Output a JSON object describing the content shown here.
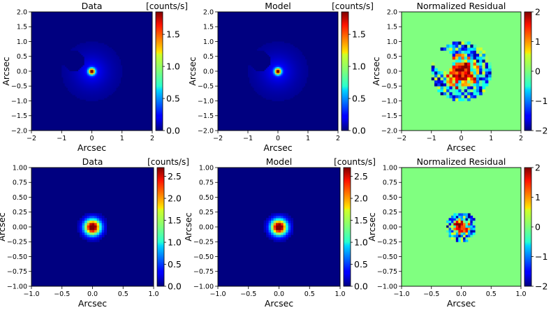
{
  "chart_data": [
    {
      "type": "heatmap",
      "title": "Data",
      "unit_label": "[counts/s]",
      "xlabel": "Arcsec",
      "ylabel": "Arcsec",
      "xlim": [
        -2,
        2
      ],
      "ylim": [
        -2,
        2
      ],
      "xticks": [
        "-2",
        "-1",
        "0",
        "1",
        "2"
      ],
      "yticks": [
        "-2.0",
        "-1.5",
        "-1.0",
        "-0.5",
        "0.0",
        "0.5",
        "1.0",
        "1.5",
        "2.0"
      ],
      "colormap": "jet",
      "clim": [
        0,
        1.85
      ],
      "cbar_ticks": [
        "0.0",
        "0.5",
        "1.0",
        "1.5"
      ],
      "cbar_values": [
        0,
        0.5,
        1.0,
        1.5
      ],
      "kind": "image",
      "peak": 1.85,
      "center": [
        0.0,
        0.0
      ],
      "sigma": 0.07,
      "mask": {
        "outer_r": 1.0,
        "notch_center": [
          -0.6,
          0.35
        ],
        "notch_r": 0.35
      },
      "pixel": 0.05
    },
    {
      "type": "heatmap",
      "title": "Model",
      "unit_label": "[counts/s]",
      "xlabel": "Arcsec",
      "ylabel": "Arcsec",
      "xlim": [
        -2,
        2
      ],
      "ylim": [
        -2,
        2
      ],
      "xticks": [
        "-2",
        "-1",
        "0",
        "1",
        "2"
      ],
      "yticks": [
        "-2.0",
        "-1.5",
        "-1.0",
        "-0.5",
        "0.0",
        "0.5",
        "1.0",
        "1.5",
        "2.0"
      ],
      "colormap": "jet",
      "clim": [
        0,
        1.85
      ],
      "cbar_ticks": [
        "0.0",
        "0.5",
        "1.0",
        "1.5"
      ],
      "cbar_values": [
        0,
        0.5,
        1.0,
        1.5
      ],
      "kind": "image",
      "peak": 1.85,
      "center": [
        0.0,
        0.0
      ],
      "sigma": 0.07,
      "mask": {
        "outer_r": 1.0,
        "notch_center": [
          -0.6,
          0.35
        ],
        "notch_r": 0.35
      },
      "pixel": 0.05
    },
    {
      "type": "heatmap",
      "title": "Normalized Residual",
      "unit_label": "",
      "xlabel": "Arcsec",
      "ylabel": "Arcsec",
      "xlim": [
        -2,
        2
      ],
      "ylim": [
        -2,
        2
      ],
      "xticks": [
        "-2",
        "-1",
        "0",
        "1",
        "2"
      ],
      "yticks": [
        "-2.0",
        "-1.5",
        "-1.0",
        "-0.5",
        "0.0",
        "0.5",
        "1.0",
        "1.5",
        "2.0"
      ],
      "colormap": "jet",
      "clim": [
        -2,
        2
      ],
      "cbar_ticks": [
        "-2",
        "-1",
        "0",
        "1",
        "2"
      ],
      "cbar_values": [
        -2,
        -1,
        0,
        1,
        2
      ],
      "kind": "residual",
      "background": 0,
      "mask": {
        "outer_r": 1.0,
        "notch_center": [
          -0.6,
          0.35
        ],
        "notch_r": 0.35
      },
      "pixel": 0.1
    },
    {
      "type": "heatmap",
      "title": "Data",
      "unit_label": "[counts/s]",
      "xlabel": "Arcsec",
      "ylabel": "Arcsec",
      "xlim": [
        -1,
        1
      ],
      "ylim": [
        -1,
        1
      ],
      "xticks": [
        "-1.0",
        "-0.5",
        "0.0",
        "0.5",
        "1.0"
      ],
      "yticks": [
        "-1.00",
        "-0.75",
        "-0.50",
        "-0.25",
        "0.00",
        "0.25",
        "0.50",
        "0.75",
        "1.00"
      ],
      "colormap": "jet",
      "clim": [
        0,
        2.7
      ],
      "cbar_ticks": [
        "0.0",
        "0.5",
        "1.0",
        "1.5",
        "2.0",
        "2.5"
      ],
      "cbar_values": [
        0,
        0.5,
        1.0,
        1.5,
        2.0,
        2.5
      ],
      "kind": "image",
      "peak": 2.7,
      "center": [
        0.0,
        0.0
      ],
      "sigma": 0.09,
      "mask": {
        "outer_r": 0.25
      },
      "pixel": 0.04
    },
    {
      "type": "heatmap",
      "title": "Model",
      "unit_label": "[counts/s]",
      "xlabel": "Arcsec",
      "ylabel": "Arcsec",
      "xlim": [
        -1,
        1
      ],
      "ylim": [
        -1,
        1
      ],
      "xticks": [
        "-1.0",
        "-0.5",
        "0.0",
        "0.5",
        "1.0"
      ],
      "yticks": [
        "-1.00",
        "-0.75",
        "-0.50",
        "-0.25",
        "0.00",
        "0.25",
        "0.50",
        "0.75",
        "1.00"
      ],
      "colormap": "jet",
      "clim": [
        0,
        2.7
      ],
      "cbar_ticks": [
        "0.0",
        "0.5",
        "1.0",
        "1.5",
        "2.0",
        "2.5"
      ],
      "cbar_values": [
        0,
        0.5,
        1.0,
        1.5,
        2.0,
        2.5
      ],
      "kind": "image",
      "peak": 2.7,
      "center": [
        0.0,
        0.0
      ],
      "sigma": 0.09,
      "mask": {
        "outer_r": 0.25
      },
      "pixel": 0.04
    },
    {
      "type": "heatmap",
      "title": "Normalized Residual",
      "unit_label": "",
      "xlabel": "Arcsec",
      "ylabel": "Arcsec",
      "xlim": [
        -1,
        1
      ],
      "ylim": [
        -1,
        1
      ],
      "xticks": [
        "-1.0",
        "-0.5",
        "0.0",
        "0.5",
        "1.0"
      ],
      "yticks": [
        "-1.00",
        "-0.75",
        "-0.50",
        "-0.25",
        "0.00",
        "0.25",
        "0.50",
        "0.75",
        "1.00"
      ],
      "colormap": "jet",
      "clim": [
        -2,
        2
      ],
      "cbar_ticks": [
        "-2",
        "-1",
        "0",
        "1",
        "2"
      ],
      "cbar_values": [
        -2,
        -1,
        0,
        1,
        2
      ],
      "kind": "residual",
      "background": 0,
      "mask": {
        "outer_r": 0.25
      },
      "pixel": 0.04
    }
  ]
}
